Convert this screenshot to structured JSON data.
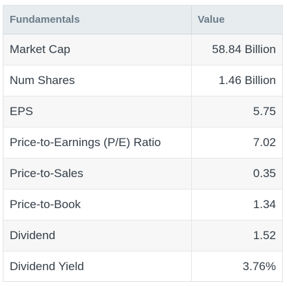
{
  "table": {
    "headers": {
      "label": "Fundamentals",
      "value": "Value"
    },
    "rows": [
      {
        "label": "Market Cap",
        "value": "58.84 Billion"
      },
      {
        "label": "Num Shares",
        "value": "1.46 Billion"
      },
      {
        "label": "EPS",
        "value": "5.75"
      },
      {
        "label": "Price-to-Earnings (P/E) Ratio",
        "value": "7.02"
      },
      {
        "label": "Price-to-Sales",
        "value": "0.35"
      },
      {
        "label": "Price-to-Book",
        "value": "1.34"
      },
      {
        "label": "Dividend",
        "value": "1.52"
      },
      {
        "label": "Dividend Yield",
        "value": "3.76%"
      }
    ]
  },
  "colors": {
    "header_bg": "#e7ecef",
    "header_text": "#6b7c88",
    "row_text": "#333d47",
    "shaded_row_bg": "#f7f7f7",
    "border": "#e4e7ea"
  }
}
